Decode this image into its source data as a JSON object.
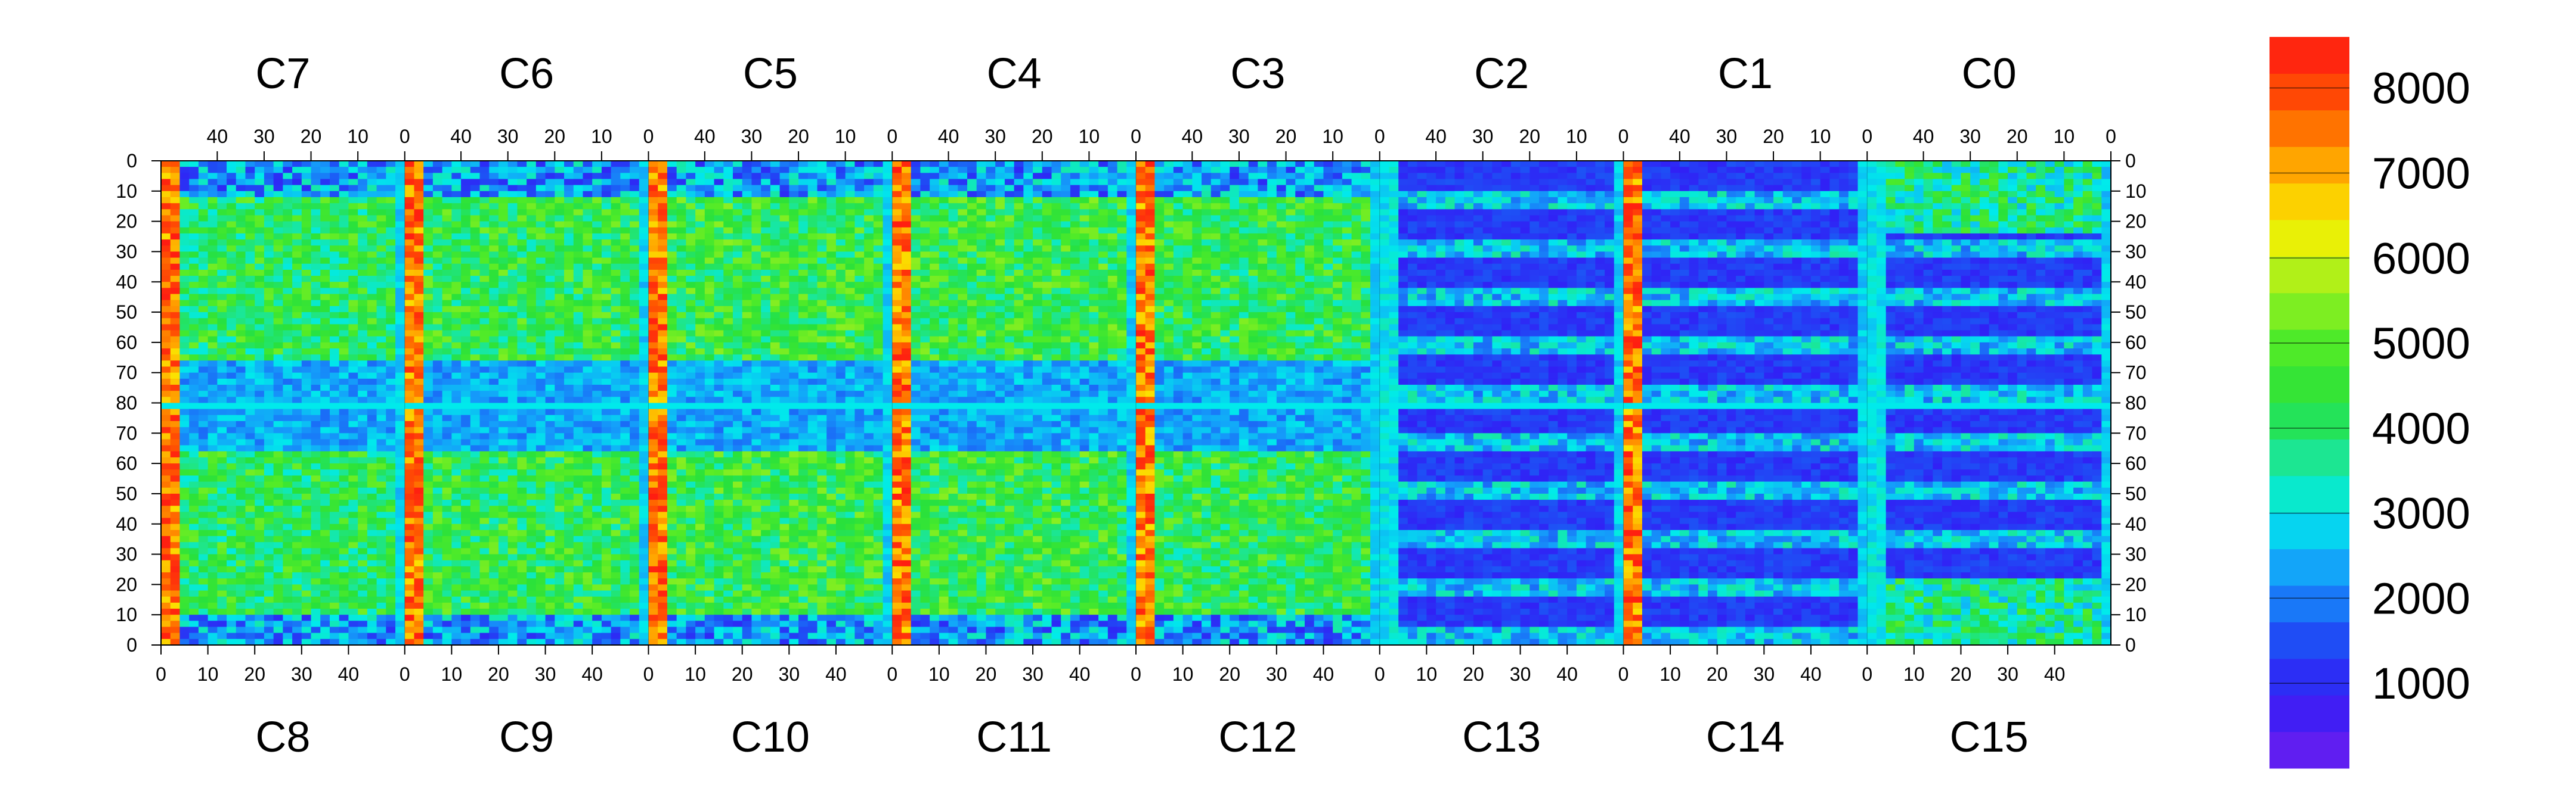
{
  "chart_data": {
    "type": "heatmap",
    "title": "",
    "xlabel": "",
    "ylabel": "",
    "chips_top": [
      "C7",
      "C6",
      "C5",
      "C4",
      "C3",
      "C2",
      "C1",
      "C0"
    ],
    "chips_bottom": [
      "C8",
      "C9",
      "C10",
      "C11",
      "C12",
      "C13",
      "C14",
      "C15"
    ],
    "x_ticks_top": [
      "40",
      "30",
      "20",
      "10",
      "0"
    ],
    "x_ticks_bottom": [
      "0",
      "10",
      "20",
      "30",
      "40"
    ],
    "y_ticks": [
      "0",
      "10",
      "20",
      "30",
      "40",
      "50",
      "60",
      "70",
      "80",
      "70",
      "60",
      "50",
      "40",
      "30",
      "20",
      "10",
      "0"
    ],
    "columns_per_chip": 52,
    "rows": 160,
    "zlim": [
      0,
      8600
    ],
    "colorbar_ticks": [
      "1000",
      "2000",
      "3000",
      "4000",
      "5000",
      "6000",
      "7000",
      "8000"
    ],
    "colorbar_levels": 20,
    "colors": {
      "low": "#6f1ef0",
      "background": "#ffffff",
      "hot": "#ff1a1a",
      "dead": "#ffffff"
    },
    "regions": [
      {
        "name": "C7",
        "level": 3100,
        "hot_col": 50
      },
      {
        "name": "C6",
        "level": 3200,
        "hot_col": 52
      },
      {
        "name": "C5",
        "level": 3300,
        "hot_col": 104
      },
      {
        "name": "C4",
        "level": 3300,
        "hot_col": 155
      },
      {
        "name": "C3",
        "level": 3200,
        "hot_col": 207
      },
      {
        "name": "C2",
        "level": 3000,
        "hot_col": 258
      },
      {
        "name": "C1",
        "level": 1200,
        "hot_col": 361
      },
      {
        "name": "C0",
        "level": 1300,
        "hot_col": 412
      }
    ]
  }
}
